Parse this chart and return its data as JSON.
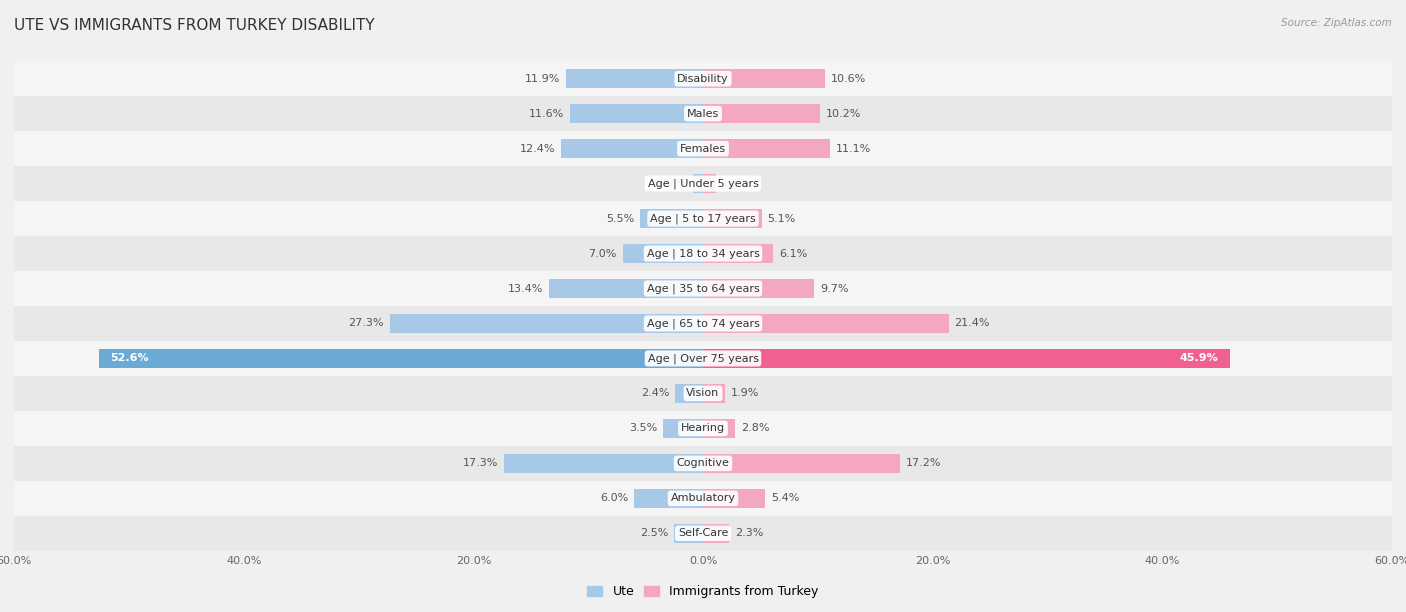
{
  "title": "UTE VS IMMIGRANTS FROM TURKEY DISABILITY",
  "source": "Source: ZipAtlas.com",
  "categories": [
    "Disability",
    "Males",
    "Females",
    "Age | Under 5 years",
    "Age | 5 to 17 years",
    "Age | 18 to 34 years",
    "Age | 35 to 64 years",
    "Age | 65 to 74 years",
    "Age | Over 75 years",
    "Vision",
    "Hearing",
    "Cognitive",
    "Ambulatory",
    "Self-Care"
  ],
  "ute_values": [
    11.9,
    11.6,
    12.4,
    0.86,
    5.5,
    7.0,
    13.4,
    27.3,
    52.6,
    2.4,
    3.5,
    17.3,
    6.0,
    2.5
  ],
  "turkey_values": [
    10.6,
    10.2,
    11.1,
    1.1,
    5.1,
    6.1,
    9.7,
    21.4,
    45.9,
    1.9,
    2.8,
    17.2,
    5.4,
    2.3
  ],
  "ute_color_normal": "#a8c8e8",
  "turkey_color_normal": "#f4a8c0",
  "ute_color_bold": "#6aaad4",
  "turkey_color_bold": "#f06090",
  "row_bg_light": "#f5f5f5",
  "row_bg_dark": "#e8e8e8",
  "page_bg": "#f0f0f0",
  "axis_max": 60.0,
  "title_fontsize": 11,
  "bar_label_fontsize": 8,
  "cat_label_fontsize": 8,
  "legend_label_ute": "Ute",
  "legend_label_turkey": "Immigrants from Turkey",
  "bold_row_index": 8
}
